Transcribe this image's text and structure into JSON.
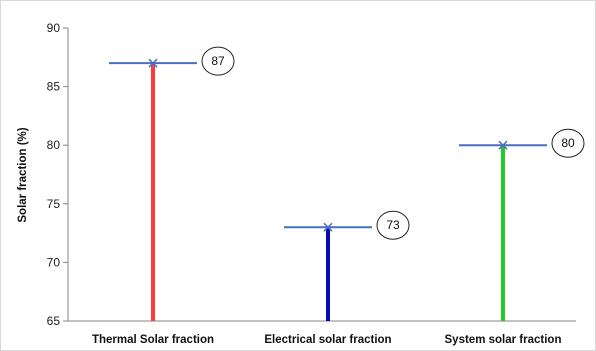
{
  "chart_data": {
    "type": "bar",
    "categories": [
      "Thermal Solar fraction",
      "Electrical solar fraction",
      "System solar fraction"
    ],
    "values": [
      87,
      73,
      80
    ],
    "data_labels": [
      "87",
      "73",
      "80"
    ],
    "ylabel": "Solar fraction (%)",
    "xlabel": "",
    "ylim": [
      65,
      90
    ],
    "yticks": [
      65,
      70,
      75,
      80,
      85,
      90
    ],
    "ytick_labels": [
      "65",
      "70",
      "75",
      "80",
      "85",
      "90"
    ],
    "grid": false,
    "bar_colors": [
      "#ff3b3b",
      "#0a0ab4",
      "#22cc22"
    ],
    "target_line_color": "#4a6fc0",
    "marker": "x"
  }
}
